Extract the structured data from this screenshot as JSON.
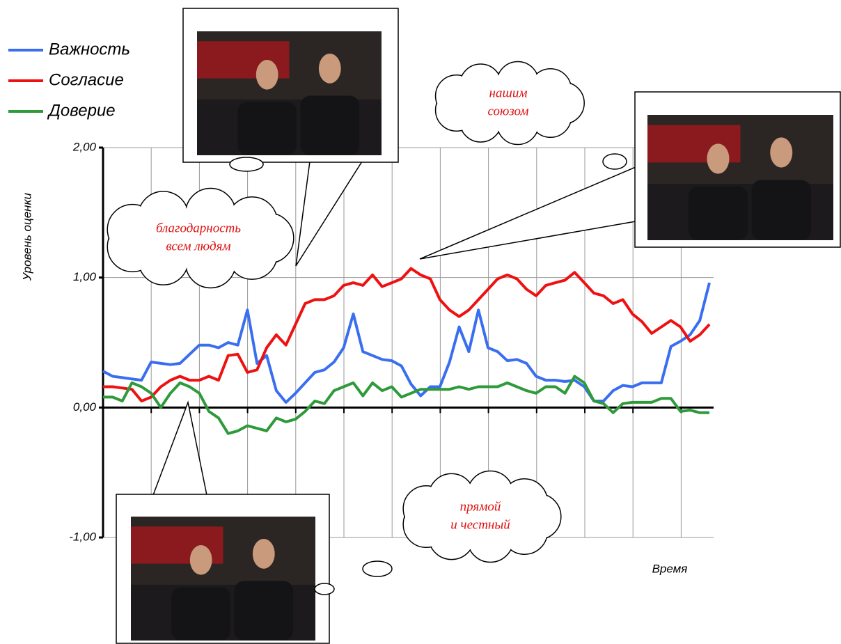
{
  "chart_data": {
    "type": "line",
    "y_label": "Уровень оценки",
    "x_label": "Время",
    "ylim": [
      -1,
      2
    ],
    "yticks": [
      {
        "value": 2,
        "label": "2,00"
      },
      {
        "value": 1,
        "label": "1,00"
      },
      {
        "value": 0,
        "label": "0,00"
      },
      {
        "value": -1,
        "label": "-1,00"
      }
    ],
    "grid": true,
    "series": [
      {
        "name": "Важность",
        "color": "#3a6ef0",
        "values": [
          0.28,
          0.24,
          0.23,
          0.22,
          0.21,
          0.35,
          0.34,
          0.33,
          0.34,
          0.41,
          0.48,
          0.48,
          0.46,
          0.5,
          0.48,
          0.75,
          0.34,
          0.4,
          0.13,
          0.04,
          0.11,
          0.19,
          0.27,
          0.29,
          0.35,
          0.46,
          0.72,
          0.43,
          0.4,
          0.37,
          0.36,
          0.32,
          0.18,
          0.09,
          0.16,
          0.16,
          0.35,
          0.62,
          0.43,
          0.75,
          0.46,
          0.43,
          0.36,
          0.37,
          0.34,
          0.24,
          0.21,
          0.21,
          0.2,
          0.21,
          0.16,
          0.05,
          0.05,
          0.13,
          0.17,
          0.16,
          0.19,
          0.19,
          0.19,
          0.47,
          0.51,
          0.56,
          0.67,
          0.96
        ]
      },
      {
        "name": "Согласие",
        "color": "#ee1111",
        "values": [
          0.16,
          0.16,
          0.15,
          0.14,
          0.05,
          0.08,
          0.16,
          0.21,
          0.24,
          0.21,
          0.21,
          0.24,
          0.21,
          0.4,
          0.41,
          0.27,
          0.29,
          0.46,
          0.56,
          0.48,
          0.64,
          0.8,
          0.83,
          0.83,
          0.86,
          0.94,
          0.96,
          0.94,
          1.02,
          0.93,
          0.96,
          0.99,
          1.07,
          1.02,
          0.99,
          0.83,
          0.75,
          0.7,
          0.75,
          0.83,
          0.91,
          0.99,
          1.02,
          0.99,
          0.91,
          0.86,
          0.94,
          0.96,
          0.98,
          1.04,
          0.96,
          0.88,
          0.86,
          0.8,
          0.83,
          0.72,
          0.66,
          0.57,
          0.62,
          0.67,
          0.62,
          0.51,
          0.56,
          0.64
        ]
      },
      {
        "name": "Доверие",
        "color": "#2e9a3a",
        "values": [
          0.08,
          0.08,
          0.05,
          0.19,
          0.16,
          0.11,
          0.0,
          0.11,
          0.19,
          0.16,
          0.11,
          -0.03,
          -0.08,
          -0.2,
          -0.18,
          -0.14,
          -0.16,
          -0.18,
          -0.08,
          -0.11,
          -0.09,
          -0.03,
          0.05,
          0.03,
          0.13,
          0.16,
          0.19,
          0.09,
          0.19,
          0.13,
          0.16,
          0.08,
          0.11,
          0.14,
          0.14,
          0.14,
          0.14,
          0.16,
          0.14,
          0.16,
          0.16,
          0.16,
          0.19,
          0.16,
          0.13,
          0.11,
          0.16,
          0.16,
          0.11,
          0.24,
          0.19,
          0.05,
          0.03,
          -0.04,
          0.03,
          0.04,
          0.04,
          0.04,
          0.07,
          0.07,
          -0.03,
          -0.02,
          -0.04,
          -0.04
        ]
      }
    ],
    "annotations": [
      {
        "lines": [
          "благодарность",
          "всем людям"
        ]
      },
      {
        "lines": [
          "нашим",
          "союзом"
        ]
      },
      {
        "lines": [
          "прямой",
          "и честный"
        ]
      }
    ]
  }
}
